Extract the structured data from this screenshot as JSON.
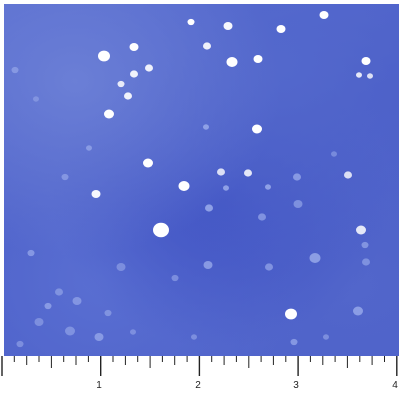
{
  "image": {
    "subject": "blue-watercolor-fabric-with-white-dots",
    "colors": {
      "fabric_base": "#4a5dc7",
      "fabric_light": "#6b7fd6",
      "dot_bright": "#ffffff",
      "dot_faint": "#8ea0e6",
      "ruler_bg": "#ffffff",
      "ruler_ink": "#222222"
    }
  },
  "ruler": {
    "labels": [
      "1",
      "2",
      "3",
      "4"
    ]
  }
}
